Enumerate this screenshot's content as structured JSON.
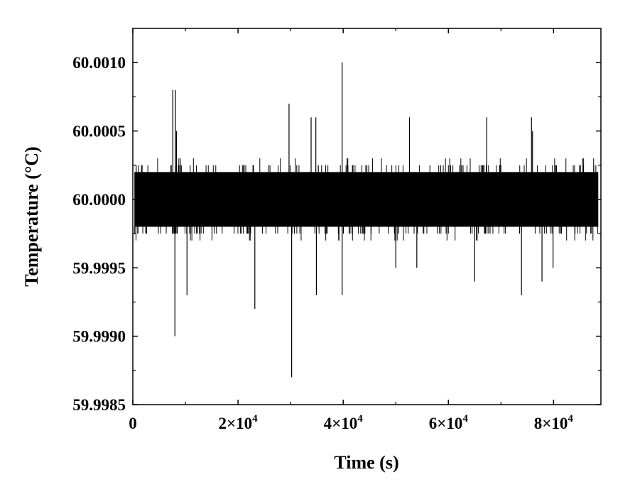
{
  "chart_data": {
    "type": "line",
    "title": "",
    "xlabel": "Time (s)",
    "ylabel": "Temperature (°C)",
    "xlim": [
      0,
      89000
    ],
    "ylim": [
      59.9985,
      60.00125
    ],
    "x_ticks": [
      {
        "value": 0,
        "mantissa": "0",
        "exponent": ""
      },
      {
        "value": 20000,
        "mantissa": "2×10",
        "exponent": "4"
      },
      {
        "value": 40000,
        "mantissa": "4×10",
        "exponent": "4"
      },
      {
        "value": 60000,
        "mantissa": "6×10",
        "exponent": "4"
      },
      {
        "value": 80000,
        "mantissa": "8×10",
        "exponent": "4"
      }
    ],
    "y_ticks": [
      {
        "value": 59.9985,
        "label": "59.9985"
      },
      {
        "value": 59.999,
        "label": "59.9990"
      },
      {
        "value": 59.9995,
        "label": "59.9995"
      },
      {
        "value": 60.0,
        "label": "60.0000"
      },
      {
        "value": 60.0005,
        "label": "60.0005"
      },
      {
        "value": 60.001,
        "label": "60.0010"
      }
    ],
    "series": [
      {
        "data_extent": [
          300,
          88500
        ],
        "baseline": 60.0,
        "noise_band": [
          59.9998,
          60.0002
        ],
        "line_color": "#000000",
        "spikes": [
          {
            "x": 7600,
            "y": 60.0008
          },
          {
            "x": 8100,
            "y": 60.0008
          },
          {
            "x": 8300,
            "y": 60.0005
          },
          {
            "x": 8000,
            "y": 59.999
          },
          {
            "x": 10300,
            "y": 59.9993
          },
          {
            "x": 23200,
            "y": 59.9992
          },
          {
            "x": 29700,
            "y": 60.0007
          },
          {
            "x": 30200,
            "y": 59.9987
          },
          {
            "x": 33900,
            "y": 60.0006
          },
          {
            "x": 34800,
            "y": 60.0006
          },
          {
            "x": 34900,
            "y": 59.9993
          },
          {
            "x": 39800,
            "y": 60.001
          },
          {
            "x": 39800,
            "y": 59.9993
          },
          {
            "x": 50000,
            "y": 59.9995
          },
          {
            "x": 52600,
            "y": 60.0006
          },
          {
            "x": 54000,
            "y": 59.9995
          },
          {
            "x": 65000,
            "y": 59.9994
          },
          {
            "x": 67300,
            "y": 60.0006
          },
          {
            "x": 73900,
            "y": 59.9993
          },
          {
            "x": 75800,
            "y": 60.0006
          },
          {
            "x": 76000,
            "y": 60.0005
          },
          {
            "x": 77800,
            "y": 59.9994
          },
          {
            "x": 79900,
            "y": 59.9995
          }
        ]
      }
    ]
  }
}
